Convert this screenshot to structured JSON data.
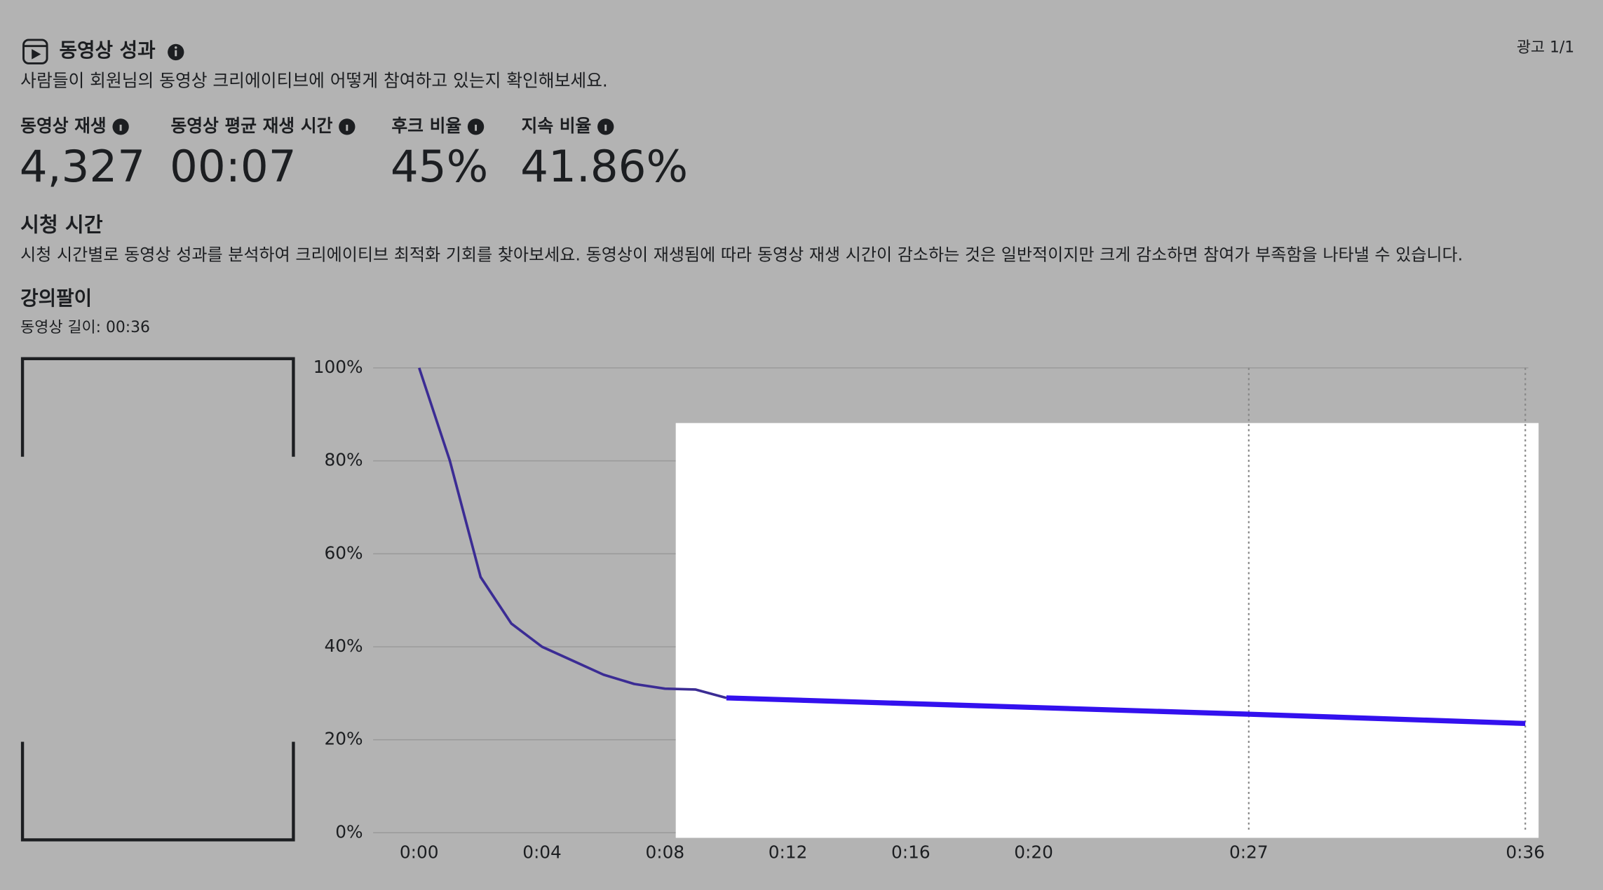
{
  "header": {
    "title": "동영상 성과",
    "subtitle": "사람들이 회원님의 동영상 크리에이티브에 어떻게 참여하고 있는지 확인해보세요.",
    "ad_counter": "광고 1/1"
  },
  "metrics": [
    {
      "label": "동영상 재생",
      "value": "4,327"
    },
    {
      "label": "동영상 평균 재생 시간",
      "value": "00:07"
    },
    {
      "label": "후크 비율",
      "value": "45%"
    },
    {
      "label": "지속 비율",
      "value": "41.86%"
    }
  ],
  "watch_time": {
    "title": "시청 시간",
    "description": "시청 시간별로 동영상 성과를 분석하여 크리에이티브 최적화 기회를 찾아보세요. 동영상이 재생됨에 따라 동영상 재생 시간이 감소하는 것은 일반적이지만 크게 감소하면 참여가 부족함을 나타낼 수 있습니다.",
    "video_name": "강의팔이",
    "video_length": "동영상 길이: 00:36"
  },
  "chart_data": {
    "type": "line",
    "x": [
      0,
      1,
      2,
      3,
      4,
      5,
      6,
      7,
      8,
      9,
      10,
      27,
      36
    ],
    "series": [
      {
        "color": "#3b2c94",
        "values": [
          100,
          80,
          55,
          45,
          40,
          37,
          34,
          32,
          31,
          30.8,
          29,
          null,
          null
        ]
      },
      {
        "color": "#3311ee",
        "highlight": true,
        "values": [
          null,
          null,
          null,
          null,
          null,
          null,
          null,
          null,
          null,
          null,
          29,
          25.5,
          23.5
        ]
      }
    ],
    "xlim": [
      0,
      36
    ],
    "xticks": [
      {
        "value": 0,
        "label": "0:00"
      },
      {
        "value": 4,
        "label": "0:04"
      },
      {
        "value": 8,
        "label": "0:08"
      },
      {
        "value": 12,
        "label": "0:12"
      },
      {
        "value": 16,
        "label": "0:16"
      },
      {
        "value": 20,
        "label": "0:20"
      },
      {
        "value": 27,
        "label": "0:27"
      },
      {
        "value": 36,
        "label": "0:36"
      }
    ],
    "vlines": [
      27,
      36
    ],
    "ylim": [
      0,
      100
    ],
    "yticks": [
      {
        "value": 0,
        "label": "0%"
      },
      {
        "value": 20,
        "label": "20%"
      },
      {
        "value": 40,
        "label": "40%"
      },
      {
        "value": 60,
        "label": "60%"
      },
      {
        "value": 80,
        "label": "80%"
      },
      {
        "value": 100,
        "label": "100%"
      }
    ],
    "grid": true
  }
}
